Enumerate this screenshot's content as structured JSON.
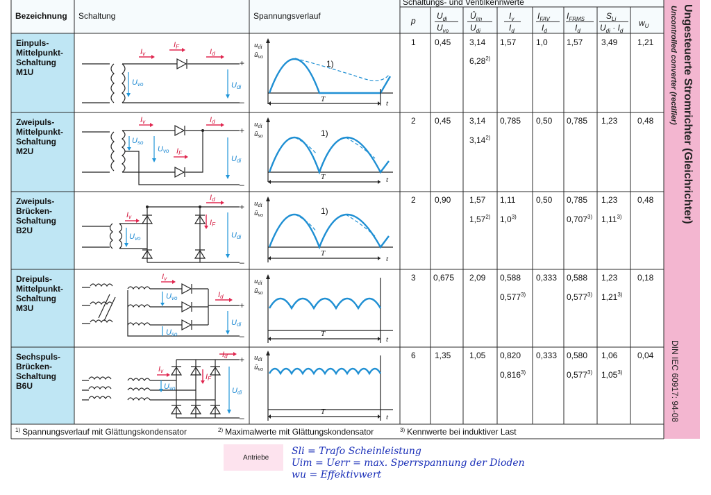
{
  "header": {
    "group": "Schaltungs- und Ventilkennwerte",
    "bezeichnung": "Bezeichnung",
    "schaltung": "Schaltung",
    "spannungsverlauf": "Spannungsverlauf",
    "p": "p",
    "c1_num": "U",
    "c1_num_sub": "di",
    "c1_den": "U",
    "c1_den_sub": "vo",
    "c2_num": "Û",
    "c2_num_sub": "im",
    "c2_den": "U",
    "c2_den_sub": "di",
    "c3_num": "I",
    "c3_num_sub": "v",
    "c3_den": "I",
    "c3_den_sub": "d",
    "c4_num": "I",
    "c4_num_sub": "FAV",
    "c4_den": "I",
    "c4_den_sub": "d",
    "c5_num": "I",
    "c5_num_sub": "FRMS",
    "c5_den": "I",
    "c5_den_sub": "d",
    "c6_num": "S",
    "c6_num_sub": "Li",
    "c6_den": "U",
    "c6_den_sub": "di",
    "c6_den_dot": " · ",
    "c6_den2": "I",
    "c6_den2_sub": "d",
    "c7": "w",
    "c7_sub": "U"
  },
  "rows": [
    {
      "name": [
        "Einpuls-",
        "Mittelpunkt-",
        "Schaltung",
        "M1U"
      ],
      "p": "1",
      "udi": "0,45",
      "uim": "3,14",
      "uim2": "6,28",
      "uim2_note": "2)",
      "iv": "1,57",
      "iv2": "",
      "iv2_note": "",
      "ifav": "1,0",
      "ifrms": "1,57",
      "ifrms2": "",
      "ifrms2_note": "",
      "sli": "3,49",
      "sli2": "",
      "sli2_note": "",
      "wu": "1,21",
      "note_label": "1)"
    },
    {
      "name": [
        "Zweipuls-",
        "Mittelpunkt-",
        "Schaltung",
        "M2U"
      ],
      "p": "2",
      "udi": "0,45",
      "uim": "3,14",
      "uim2": "3,14",
      "uim2_note": "2)",
      "iv": "0,785",
      "iv2": "",
      "iv2_note": "",
      "ifav": "0,50",
      "ifrms": "0,785",
      "ifrms2": "",
      "ifrms2_note": "",
      "sli": "1,23",
      "sli2": "",
      "sli2_note": "",
      "wu": "0,48",
      "note_label": "1)"
    },
    {
      "name": [
        "Zweipuls-",
        "Brücken-",
        "Schaltung",
        "B2U"
      ],
      "p": "2",
      "udi": "0,90",
      "uim": "1,57",
      "uim2": "1,57",
      "uim2_note": "2)",
      "iv": "1,11",
      "iv2": "1,0",
      "iv2_note": "3)",
      "ifav": "0,50",
      "ifrms": "0,785",
      "ifrms2": "0,707",
      "ifrms2_note": "3)",
      "sli": "1,23",
      "sli2": "1,11",
      "sli2_note": "3)",
      "wu": "0,48",
      "note_label": "1)"
    },
    {
      "name": [
        "Dreipuls-",
        "Mittelpunkt-",
        "Schaltung",
        "M3U"
      ],
      "p": "3",
      "udi": "0,675",
      "uim": "2,09",
      "uim2": "",
      "uim2_note": "",
      "iv": "0,588",
      "iv2": "0,577",
      "iv2_note": "3)",
      "ifav": "0,333",
      "ifrms": "0,588",
      "ifrms2": "0,577",
      "ifrms2_note": "3)",
      "sli": "1,23",
      "sli2": "1,21",
      "sli2_note": "3)",
      "wu": "0,18",
      "note_label": ""
    },
    {
      "name": [
        "Sechspuls-",
        "Brücken-",
        "Schaltung",
        "B6U"
      ],
      "p": "6",
      "udi": "1,35",
      "uim": "1,05",
      "uim2": "",
      "uim2_note": "",
      "iv": "0,820",
      "iv2": "0,816",
      "iv2_note": "3)",
      "ifav": "0,333",
      "ifrms": "0,580",
      "ifrms2": "0,577",
      "ifrms2_note": "3)",
      "sli": "1,06",
      "sli2": "1,05",
      "sli2_note": "3)",
      "wu": "0,04",
      "note_label": ""
    }
  ],
  "labels": {
    "Iv": "I",
    "Iv_sub": "v",
    "IF": "I",
    "IF_sub": "F",
    "Id": "I",
    "Id_sub": "d",
    "Uvo": "U",
    "Uvo_sub": "vo",
    "Uso": "U",
    "Uso_sub": "so",
    "Udi": "U",
    "Udi_sub": "di",
    "udi_axis": "u",
    "udi_axis_sub": "di",
    "uvo_axis": "û",
    "uvo_axis_sub": "vo",
    "uso_axis": "û",
    "uso_axis_sub": "so",
    "T": "T",
    "t": "t",
    "plus": "+",
    "minus": "–"
  },
  "footnotes": {
    "f1_mark": "1)",
    "f1": "Spannungsverlauf mit Glättungskondensator",
    "f2_mark": "2)",
    "f2": "Maximalwerte mit Glättungskondensator",
    "f3_mark": "3)",
    "f3": "Kennwerte bei induktiver Last"
  },
  "side": {
    "title": "Ungesteuerte Stromrichter (Gleichrichter)",
    "subtitle": "Uncontrolled converter (rectifier)",
    "din": "DIN IEC 60917: 94-08"
  },
  "tag": "Antriebe",
  "handwriting": [
    "Sli  =  Trafo  Scheinleistung",
    "Uim  =  Uerr  =  max. Sperrspannung der Dioden",
    "wu  =  Effektivwert"
  ],
  "colors": {
    "col1_bg": "#bfe6f4",
    "side_bg": "#f3b6d0",
    "wave": "#1f8fd3",
    "current": "#e0264f",
    "voltage": "#2196d9",
    "handwriting": "#1a2fb8"
  }
}
